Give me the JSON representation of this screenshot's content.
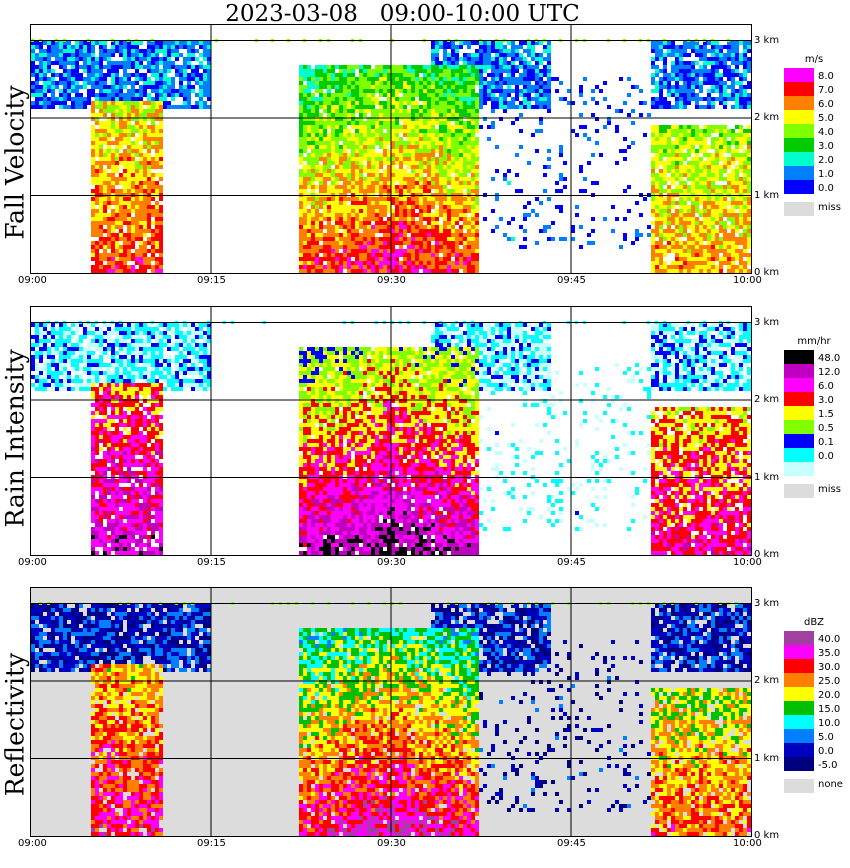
{
  "title": "2023-03-08   09:00-10:00 UTC",
  "x_ticks": [
    "09:00",
    "09:15",
    "09:30",
    "09:45",
    "10:00"
  ],
  "y_ticks": [
    "0 km",
    "1 km",
    "2 km",
    "3 km"
  ],
  "chart_data": [
    {
      "type": "heatmap",
      "title": "Fall Velocity",
      "x_range": [
        "09:00",
        "10:00"
      ],
      "y_range_km": [
        0,
        3.2
      ],
      "colorbar": {
        "unit": "m/s",
        "levels": [
          "8.0",
          "7.0",
          "6.0",
          "5.0",
          "4.0",
          "3.0",
          "2.0",
          "1.0",
          "0.0"
        ],
        "colors": [
          "#ff00ff",
          "#ff0000",
          "#ff8000",
          "#ffff00",
          "#80ff00",
          "#00cc00",
          "#00ffcc",
          "#0080ff",
          "#0000ff"
        ],
        "missing_label": "miss",
        "missing_color": "#dcdcdc"
      }
    },
    {
      "type": "heatmap",
      "title": "Rain Intensity",
      "x_range": [
        "09:00",
        "10:00"
      ],
      "y_range_km": [
        0,
        3.2
      ],
      "colorbar": {
        "unit": "mm/hr",
        "levels": [
          "48.0",
          "12.0",
          "6.0",
          "3.0",
          "1.5",
          "0.5",
          "0.1",
          "0.0"
        ],
        "colors": [
          "#000000",
          "#c000c0",
          "#ff00ff",
          "#ff0000",
          "#ffff00",
          "#80ff00",
          "#0000ff",
          "#00ffff",
          "#c8ffff"
        ],
        "missing_label": "miss",
        "missing_color": "#dcdcdc"
      }
    },
    {
      "type": "heatmap",
      "title": "Reflectivity",
      "x_range": [
        "09:00",
        "10:00"
      ],
      "y_range_km": [
        0,
        3.2
      ],
      "colorbar": {
        "unit": "dBZ",
        "levels": [
          "40.0",
          "35.0",
          "30.0",
          "25.0",
          "20.0",
          "15.0",
          "10.0",
          "5.0",
          "0.0",
          "-5.0"
        ],
        "colors": [
          "#a040a0",
          "#ff00ff",
          "#ff0000",
          "#ff8000",
          "#ffff00",
          "#00c000",
          "#00ffff",
          "#0080ff",
          "#0000c0",
          "#000080"
        ],
        "missing_label": "none",
        "missing_color": "#dcdcdc"
      }
    }
  ]
}
